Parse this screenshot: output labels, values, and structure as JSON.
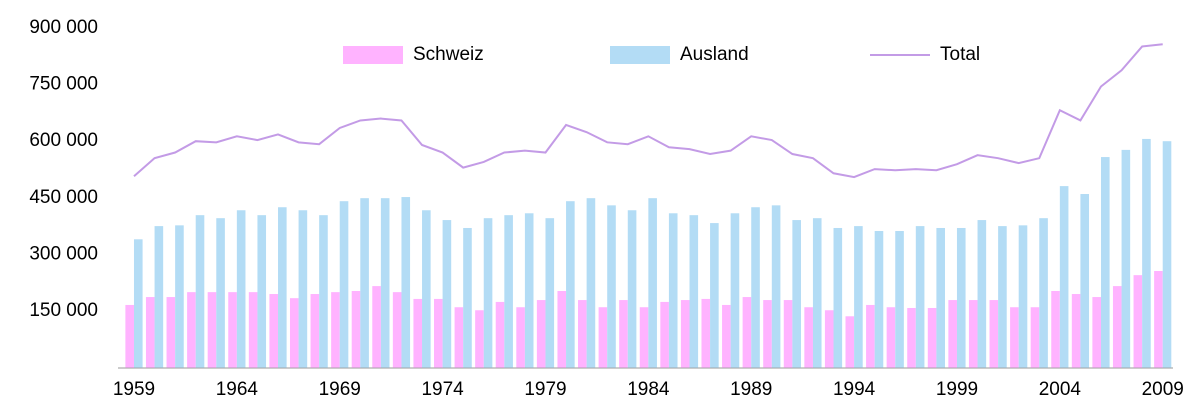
{
  "chart_data": {
    "type": "bar",
    "categories": [
      "1959",
      null,
      null,
      null,
      null,
      "1964",
      null,
      null,
      null,
      null,
      "1969",
      null,
      null,
      null,
      null,
      "1974",
      null,
      null,
      null,
      null,
      "1979",
      null,
      null,
      null,
      null,
      "1984",
      null,
      null,
      null,
      null,
      "1989",
      null,
      null,
      null,
      null,
      "1994",
      null,
      null,
      null,
      null,
      "1999",
      null,
      null,
      null,
      null,
      "2004",
      null,
      null,
      null,
      null,
      "2009"
    ],
    "series": [
      {
        "name": "Schweiz",
        "type": "bar",
        "color": "#ffb3ff",
        "values": [
          166000,
          187000,
          187000,
          200000,
          200000,
          200000,
          200000,
          195000,
          184000,
          195000,
          200000,
          203000,
          216000,
          200000,
          182000,
          182000,
          160000,
          152000,
          174000,
          160000,
          179000,
          203000,
          179000,
          160000,
          179000,
          160000,
          174000,
          179000,
          182000,
          166000,
          187000,
          179000,
          179000,
          160000,
          152000,
          136000,
          166000,
          160000,
          158000,
          158000,
          179000,
          179000,
          179000,
          160000,
          160000,
          203000,
          195000,
          187000,
          216000,
          245000,
          256000
        ]
      },
      {
        "name": "Ausland",
        "type": "bar",
        "color": "#b3dcf5",
        "values": [
          340000,
          375000,
          377000,
          404000,
          396000,
          417000,
          404000,
          425000,
          417000,
          404000,
          441000,
          449000,
          449000,
          452000,
          417000,
          391000,
          370000,
          396000,
          404000,
          409000,
          396000,
          441000,
          449000,
          430000,
          417000,
          449000,
          409000,
          404000,
          383000,
          409000,
          425000,
          430000,
          391000,
          396000,
          370000,
          375000,
          362000,
          362000,
          375000,
          370000,
          370000,
          391000,
          375000,
          377000,
          396000,
          481000,
          460000,
          558000,
          577000,
          606000,
          600000
        ]
      },
      {
        "name": "Total",
        "type": "line",
        "color": "#c39be6",
        "values": [
          507000,
          555000,
          570000,
          600000,
          597000,
          613000,
          603000,
          618000,
          597000,
          592000,
          635000,
          655000,
          660000,
          655000,
          590000,
          570000,
          530000,
          545000,
          570000,
          575000,
          570000,
          643000,
          624000,
          597000,
          592000,
          613000,
          584000,
          579000,
          566000,
          575000,
          613000,
          603000,
          566000,
          555000,
          515000,
          505000,
          526000,
          523000,
          526000,
          523000,
          539000,
          563000,
          555000,
          542000,
          555000,
          682000,
          655000,
          745000,
          788000,
          851000,
          857000
        ]
      }
    ],
    "ylim": [
      0,
      900000
    ],
    "yticks": [
      {
        "value": 150000,
        "label": "150 000"
      },
      {
        "value": 300000,
        "label": "300 000"
      },
      {
        "value": 450000,
        "label": "450 000"
      },
      {
        "value": 600000,
        "label": "600 000"
      },
      {
        "value": 750000,
        "label": "750 000"
      },
      {
        "value": 900000,
        "label": "900 000"
      }
    ],
    "grid": false,
    "legend": "top"
  }
}
